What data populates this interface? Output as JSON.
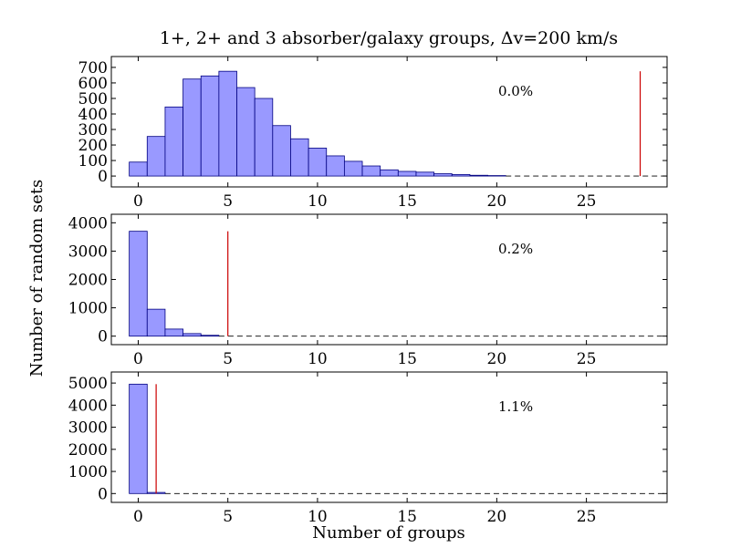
{
  "figure": {
    "title": "1+, 2+ and 3 absorber/galaxy groups, Δv=200 km/s",
    "xlabel": "Number of groups",
    "ylabel": "Number of random sets"
  },
  "colors": {
    "bar_fill": "#9999ff",
    "bar_edge": "#000080",
    "marker": "#cc0000"
  },
  "chart_data": [
    {
      "type": "bar",
      "annotation": "0.0%",
      "xlim": [
        -1.5,
        29.5
      ],
      "ylim": [
        -70,
        770
      ],
      "yticks": [
        0,
        100,
        200,
        300,
        400,
        500,
        600,
        700
      ],
      "xticks": [
        0,
        5,
        10,
        15,
        20,
        25
      ],
      "bin_width": 1,
      "x": [
        0,
        1,
        2,
        3,
        4,
        5,
        6,
        7,
        8,
        9,
        10,
        11,
        12,
        13,
        14,
        15,
        16,
        17,
        18,
        19,
        20
      ],
      "values": [
        90,
        255,
        445,
        625,
        645,
        675,
        570,
        500,
        325,
        240,
        180,
        130,
        95,
        65,
        40,
        30,
        25,
        15,
        10,
        5,
        3
      ],
      "marker_x": 28,
      "marker_top": 675
    },
    {
      "type": "bar",
      "annotation": "0.2%",
      "xlim": [
        -1.5,
        29.5
      ],
      "ylim": [
        -300,
        4300
      ],
      "yticks": [
        0,
        1000,
        2000,
        3000,
        4000
      ],
      "xticks": [
        0,
        5,
        10,
        15,
        20,
        25
      ],
      "bin_width": 1,
      "x": [
        0,
        1,
        2,
        3,
        4
      ],
      "values": [
        3700,
        950,
        250,
        90,
        30
      ],
      "marker_x": 5,
      "marker_top": 3700
    },
    {
      "type": "bar",
      "annotation": "1.1%",
      "xlim": [
        -1.5,
        29.5
      ],
      "ylim": [
        -400,
        5500
      ],
      "yticks": [
        0,
        1000,
        2000,
        3000,
        4000,
        5000
      ],
      "xticks": [
        0,
        5,
        10,
        15,
        20,
        25
      ],
      "bin_width": 1,
      "x": [
        0,
        1
      ],
      "values": [
        4950,
        50
      ],
      "marker_x": 1,
      "marker_top": 4950
    }
  ]
}
